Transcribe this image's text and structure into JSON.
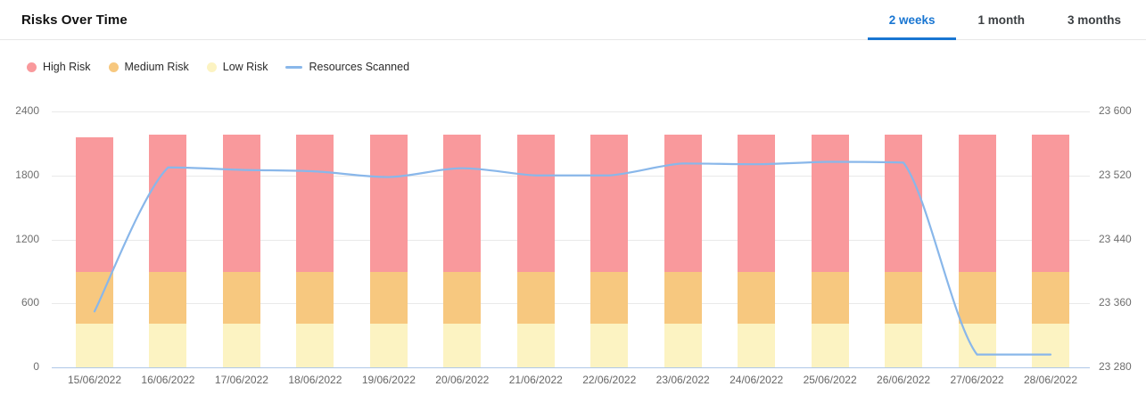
{
  "accent_color": "#1976d2",
  "header": {
    "title": "Risks Over Time",
    "tabs": [
      {
        "label": "2 weeks",
        "active": true
      },
      {
        "label": "1 month",
        "active": false
      },
      {
        "label": "3 months",
        "active": false
      }
    ]
  },
  "legend": [
    {
      "label": "High Risk",
      "marker": "dot",
      "color": "#f9999c"
    },
    {
      "label": "Medium Risk",
      "marker": "dot",
      "color": "#f7c87f"
    },
    {
      "label": "Low Risk",
      "marker": "dot",
      "color": "#fcf3c2"
    },
    {
      "label": "Resources Scanned",
      "marker": "line",
      "color": "#89b7ea"
    }
  ],
  "chart_data": {
    "type": "bar",
    "subtype": "stacked bars with overlay line on secondary axis",
    "categories": [
      "15/06/2022",
      "16/06/2022",
      "17/06/2022",
      "18/06/2022",
      "19/06/2022",
      "20/06/2022",
      "21/06/2022",
      "22/06/2022",
      "23/06/2022",
      "24/06/2022",
      "25/06/2022",
      "26/06/2022",
      "27/06/2022",
      "28/06/2022"
    ],
    "series": [
      {
        "name": "Low Risk",
        "type": "bar",
        "axis": "left",
        "stack_index": 0,
        "color": "#fcf3c2",
        "values": [
          410,
          410,
          410,
          410,
          410,
          410,
          410,
          410,
          410,
          410,
          410,
          410,
          410,
          410
        ]
      },
      {
        "name": "Medium Risk",
        "type": "bar",
        "axis": "left",
        "stack_index": 1,
        "color": "#f7c87f",
        "values": [
          485,
          485,
          485,
          485,
          485,
          485,
          485,
          485,
          485,
          485,
          485,
          485,
          485,
          485
        ]
      },
      {
        "name": "High Risk",
        "type": "bar",
        "axis": "left",
        "stack_index": 2,
        "color": "#f9999c",
        "values": [
          1265,
          1285,
          1285,
          1285,
          1285,
          1285,
          1285,
          1285,
          1285,
          1285,
          1285,
          1285,
          1285,
          1285
        ]
      },
      {
        "name": "Resources Scanned",
        "type": "line",
        "axis": "right",
        "color": "#89b7ea",
        "values": [
          23350,
          23530,
          23527,
          23525,
          23518,
          23529,
          23520,
          23520,
          23535,
          23534,
          23537,
          23536,
          23296,
          23296
        ]
      }
    ],
    "left_axis": {
      "ticks": [
        0,
        600,
        1200,
        1800,
        2400
      ],
      "tick_labels": [
        "0",
        "600",
        "1200",
        "1800",
        "2400"
      ],
      "range": [
        0,
        2400
      ]
    },
    "right_axis": {
      "ticks": [
        23280,
        23360,
        23440,
        23520,
        23600
      ],
      "tick_labels": [
        "23 280",
        "23 360",
        "23 440",
        "23 520",
        "23 600"
      ],
      "range": [
        23280,
        23600
      ]
    },
    "grid": true,
    "legend_position": "top-left",
    "title": "Risks Over Time"
  }
}
